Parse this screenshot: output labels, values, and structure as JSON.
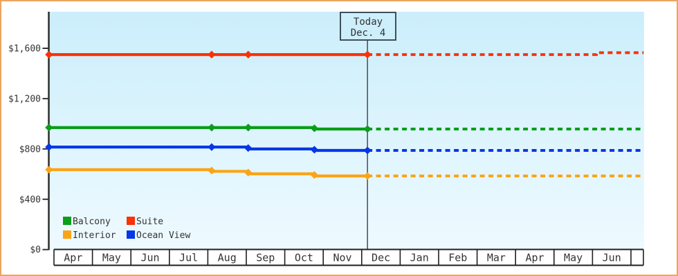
{
  "colors": {
    "frame_border": "#eba65f",
    "page_bg": "#ffffff",
    "plot_bg_top": "#cbeefb",
    "plot_bg_bottom": "#eefaff",
    "axis_line": "#333333",
    "tick_text": "#333333",
    "band_border": "#1e1e1e",
    "band_bg": "#ffffff",
    "today_line": "#4a4a4a",
    "today_box_border": "#2f3f4a",
    "today_text": "#3a3f45",
    "legend_text": "#2b2b2b"
  },
  "chart_data": {
    "type": "line",
    "description": "Cabin price history by category with dashed projection after today",
    "x_axis": {
      "unit": "month",
      "labels": [
        "Apr",
        "May",
        "Jun",
        "Jul",
        "Aug",
        "Sep",
        "Oct",
        "Nov",
        "Dec",
        "Jan",
        "Feb",
        "Mar",
        "Apr",
        "May",
        "Jun"
      ]
    },
    "y_axis": {
      "tick_values": [
        0,
        400,
        800,
        1200,
        1600
      ],
      "tick_labels": [
        "$0",
        "$400",
        "$800",
        "$1,200",
        "$1,600"
      ],
      "range": [
        0,
        1890
      ],
      "grid": false
    },
    "today": {
      "title": "Today",
      "date": "Dec. 4",
      "month_offset": 8.15
    },
    "series": [
      {
        "name": "Balcony",
        "color": "#0a9e19",
        "solid": [
          [
            -0.13,
            970
          ],
          [
            6.77,
            970
          ],
          [
            6.77,
            958
          ],
          [
            8.15,
            958
          ]
        ],
        "dashed": [
          [
            8.15,
            958
          ],
          [
            15.33,
            958
          ]
        ],
        "markers": [
          [
            -0.13,
            970
          ],
          [
            4.1,
            970
          ],
          [
            5.05,
            970
          ],
          [
            6.77,
            964
          ],
          [
            8.15,
            958
          ]
        ]
      },
      {
        "name": "Suite",
        "color": "#f93207",
        "solid": [
          [
            -0.13,
            1550
          ],
          [
            8.15,
            1550
          ]
        ],
        "dashed": [
          [
            8.15,
            1550
          ],
          [
            14.1,
            1550
          ],
          [
            14.1,
            1565
          ],
          [
            15.33,
            1565
          ]
        ],
        "markers": [
          [
            -0.13,
            1550
          ],
          [
            4.1,
            1550
          ],
          [
            5.05,
            1550
          ],
          [
            8.15,
            1550
          ]
        ]
      },
      {
        "name": "Interior",
        "color": "#fba417",
        "solid": [
          [
            -0.13,
            635
          ],
          [
            4.1,
            635
          ],
          [
            4.1,
            622
          ],
          [
            5.05,
            622
          ],
          [
            5.05,
            602
          ],
          [
            6.77,
            602
          ],
          [
            6.77,
            585
          ],
          [
            8.15,
            585
          ]
        ],
        "dashed": [
          [
            8.15,
            585
          ],
          [
            15.33,
            585
          ]
        ],
        "markers": [
          [
            -0.13,
            635
          ],
          [
            4.1,
            628
          ],
          [
            5.05,
            612
          ],
          [
            6.77,
            593
          ],
          [
            8.15,
            585
          ]
        ]
      },
      {
        "name": "Ocean View",
        "color": "#0636e8",
        "solid": [
          [
            -0.13,
            815
          ],
          [
            5.05,
            815
          ],
          [
            5.05,
            800
          ],
          [
            6.77,
            800
          ],
          [
            6.77,
            788
          ],
          [
            8.15,
            788
          ]
        ],
        "dashed": [
          [
            8.15,
            788
          ],
          [
            15.33,
            788
          ]
        ],
        "markers": [
          [
            -0.13,
            815
          ],
          [
            4.1,
            815
          ],
          [
            5.05,
            807
          ],
          [
            6.77,
            794
          ],
          [
            8.15,
            788
          ]
        ]
      }
    ],
    "legend": {
      "position": "bottom-left-inside",
      "rows": [
        [
          "Balcony",
          "Suite"
        ],
        [
          "Interior",
          "Ocean View"
        ]
      ]
    }
  }
}
